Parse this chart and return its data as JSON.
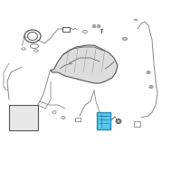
{
  "bg_color": "#ffffff",
  "highlight_color": "#5bc8e8",
  "line_color": "#888888",
  "dark_color": "#555555",
  "fig_size": [
    2.0,
    2.0
  ],
  "dpi": 100
}
